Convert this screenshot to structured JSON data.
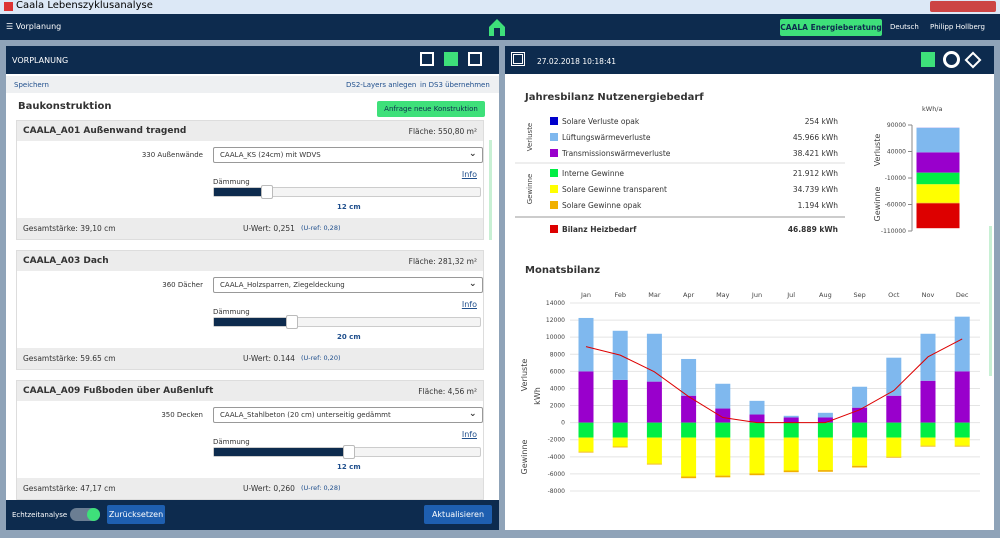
{
  "window": {
    "title": "Caala Lebenszyklusanalyse"
  },
  "nav": {
    "menu": "Vorplanung",
    "energy_button": "CAALA Energieberatung",
    "language": "Deutsch",
    "user": "Philipp Hollberg"
  },
  "left": {
    "header": "VORPLANUNG",
    "save": "Speichern",
    "ds2": "DS2-Layers anlegen",
    "ds3": "in DS3 übernehmen",
    "section": "Baukonstruktion",
    "request_button": "Anfrage neue Konstruktion",
    "cards": [
      {
        "title": "CAALA_A01 Außenwand tragend",
        "area": "Fläche: 550,80 m²",
        "group": "330 Außenwände",
        "material": "CAALA_KS (24cm) mit WDVS",
        "info": "Info",
        "insulation_label": "Dämmung",
        "insulation": "12 cm",
        "thickness": "Gesamtstärke: 39,10 cm",
        "u_value": "U-Wert: 0,251",
        "u_ref": "(U-ref: 0,28)"
      },
      {
        "title": "CAALA_A03 Dach",
        "area": "Fläche: 281,32 m²",
        "group": "360 Dächer",
        "material": "CAALA_Holzsparren, Ziegeldeckung",
        "info": "Info",
        "insulation_label": "Dämmung",
        "insulation": "20 cm",
        "thickness": "Gesamtstärke: 59.65 cm",
        "u_value": "U-Wert: 0.144",
        "u_ref": "(U-ref: 0,20)"
      },
      {
        "title": "CAALA_A09 Fußboden über Außenluft",
        "area": "Fläche: 4,56 m²",
        "group": "350 Decken",
        "material": "CAALA_Stahlbeton (20 cm) unterseitig gedämmt",
        "info": "Info",
        "insulation_label": "Dämmung",
        "insulation": "12 cm",
        "thickness": "Gesamtstärke: 47,17 cm",
        "u_value": "U-Wert: 0,260",
        "u_ref": "(U-ref: 0,28)"
      }
    ],
    "footer": {
      "realtime": "Echtzeitanalyse",
      "reset": "Zurücksetzen",
      "update": "Aktualisieren"
    }
  },
  "right": {
    "timestamp": "27.02.2018 10:18:41",
    "annual_title": "Jahresbilanz Nutzenergiebedarf",
    "group_losses": "Verluste",
    "group_gains": "Gewinne",
    "rows": [
      {
        "name": "Solare Verluste opak",
        "value": "254 kWh",
        "color": "#0000cc"
      },
      {
        "name": "Lüftungswärmeverluste",
        "value": "45.966 kWh",
        "color": "#7fb8ee"
      },
      {
        "name": "Transmissionswärmeverluste",
        "value": "38.421 kWh",
        "color": "#9900cc"
      },
      {
        "name": "Interne Gewinne",
        "value": "21.912 kWh",
        "color": "#00ee44"
      },
      {
        "name": "Solare Gewinne transparent",
        "value": "34.739 kWh",
        "color": "#ffff00"
      },
      {
        "name": "Solare Gewinne opak",
        "value": "1.194 kWh",
        "color": "#f0b000"
      }
    ],
    "total": {
      "name": "Bilanz Heizbedarf",
      "value": "46.889 kWh",
      "color": "#dd0000"
    },
    "monthly_title": "Monatsbilanz"
  },
  "chart_data": [
    {
      "type": "bar",
      "stacked": true,
      "unit": "kWh/a",
      "y_label_top": "Verluste",
      "y_label_bottom": "Gewinne",
      "ylim": [
        -110000,
        90000
      ],
      "yticks": [
        90000,
        40000,
        -10000,
        -60000,
        -110000
      ],
      "series": [
        {
          "color": "#9900cc",
          "values": [
            38421
          ]
        },
        {
          "color": "#7fb8ee",
          "values": [
            45966
          ]
        },
        {
          "color": "#0000cc",
          "values": [
            254
          ]
        },
        {
          "color": "#00ee44",
          "values": [
            -21912
          ]
        },
        {
          "color": "#ffff00",
          "values": [
            -34739
          ]
        },
        {
          "color": "#f0b000",
          "values": [
            -1194
          ]
        },
        {
          "color": "#dd0000",
          "values": [
            -46889
          ]
        }
      ]
    },
    {
      "type": "bar",
      "stacked": true,
      "y_label": "kWh",
      "y_label_top": "Verluste",
      "y_label_bottom": "Gewinne",
      "grid": true,
      "categories": [
        "Jan",
        "Feb",
        "Mar",
        "Apr",
        "May",
        "Jun",
        "Jul",
        "Aug",
        "Sep",
        "Oct",
        "Nov",
        "Dec"
      ],
      "ylim": [
        -8000,
        14000
      ],
      "yticks": [
        14000,
        12000,
        10000,
        8000,
        6000,
        4000,
        2000,
        0,
        -2000,
        -4000,
        -6000,
        -8000
      ],
      "series": [
        {
          "color": "#9900cc",
          "values": [
            6000,
            5000,
            4800,
            3150,
            1650,
            950,
            600,
            600,
            1750,
            3150,
            4900,
            6000
          ]
        },
        {
          "color": "#7fb8ee",
          "values": [
            6250,
            5750,
            5600,
            4300,
            2900,
            1600,
            200,
            550,
            2450,
            4450,
            5500,
            6400
          ]
        },
        {
          "color": "#00ee44",
          "values": [
            -1750,
            -1750,
            -1750,
            -1750,
            -1750,
            -1750,
            -1750,
            -1750,
            -1750,
            -1750,
            -1750,
            -1750
          ]
        },
        {
          "color": "#ffff00",
          "values": [
            -1650,
            -1050,
            -3050,
            -4550,
            -4450,
            -4200,
            -3850,
            -3800,
            -3300,
            -2250,
            -950,
            -950
          ]
        },
        {
          "color": "#f0b000",
          "values": [
            -100,
            -100,
            -100,
            -200,
            -200,
            -200,
            -200,
            -200,
            -200,
            -100,
            -100,
            -100
          ]
        },
        {
          "kind": "line",
          "color": "#dd0000",
          "values": [
            8900,
            7900,
            5950,
            3050,
            600,
            0,
            0,
            0,
            1500,
            3750,
            7700,
            9800
          ]
        }
      ]
    }
  ]
}
